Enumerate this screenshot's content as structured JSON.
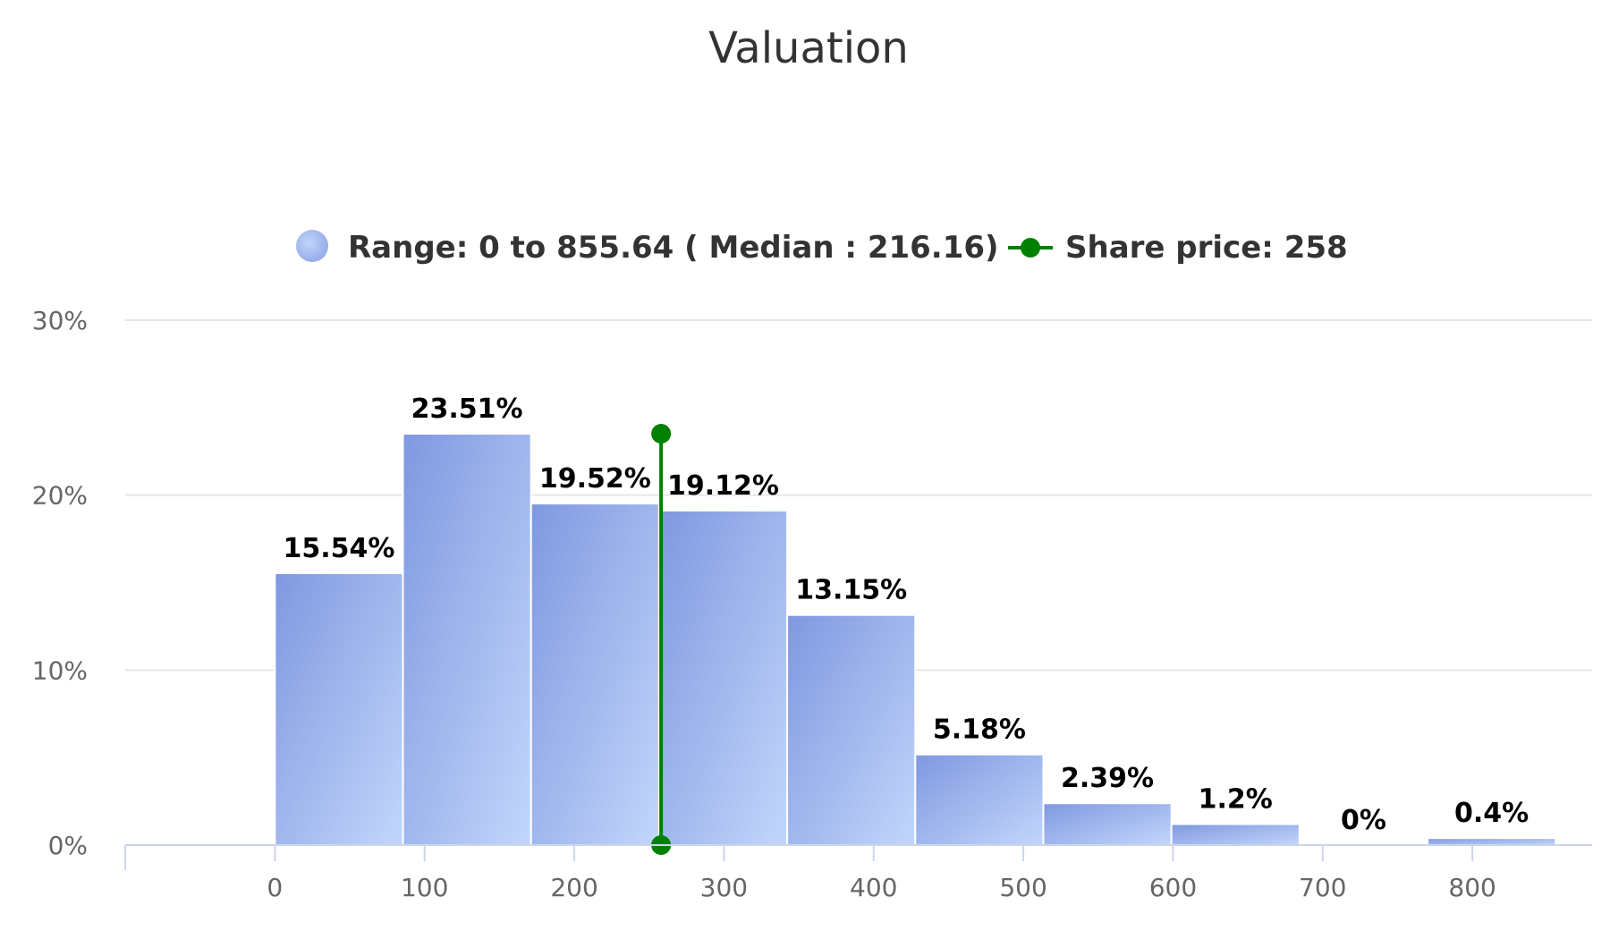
{
  "chart_data": {
    "type": "bar",
    "title": "Valuation",
    "xlabel": "",
    "ylabel": "",
    "bin_starts": [
      0,
      85.564,
      171.128,
      256.692,
      342.256,
      427.82,
      513.384,
      598.948,
      684.512,
      770.076
    ],
    "bin_width": 85.564,
    "values": [
      15.54,
      23.51,
      19.52,
      19.12,
      13.15,
      5.18,
      2.39,
      1.2,
      0,
      0.4
    ],
    "data_labels": [
      "15.54%",
      "23.51%",
      "19.52%",
      "19.12%",
      "13.15%",
      "5.18%",
      "2.39%",
      "1.2%",
      "0%",
      "0.4%"
    ],
    "x_ticks": [
      "0",
      "100",
      "200",
      "300",
      "400",
      "500",
      "600",
      "700",
      "800"
    ],
    "x_tick_values": [
      0,
      100,
      200,
      300,
      400,
      500,
      600,
      700,
      800
    ],
    "y_ticks": [
      "0%",
      "10%",
      "20%",
      "30%"
    ],
    "y_tick_values": [
      0,
      10,
      20,
      30
    ],
    "xlim": [
      -100,
      880
    ],
    "ylim": [
      0,
      30
    ],
    "grid": true,
    "legend_position": "top",
    "share_price": 258,
    "series": [
      {
        "name": "Range: 0 to 855.64 ( Median : 216.16)",
        "color": "#94abe8"
      },
      {
        "name": "Share price: 258",
        "color": "#008000"
      }
    ]
  }
}
